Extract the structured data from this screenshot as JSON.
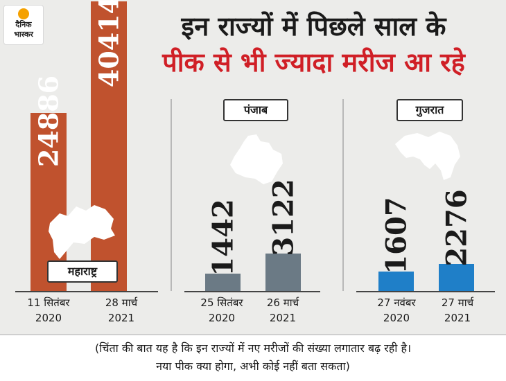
{
  "logo": {
    "line1": "दैनिक",
    "line2": "भास्कर"
  },
  "headline": {
    "line1": "इन राज्यों में पिछले साल के",
    "line2": "पीक से भी ज्यादा मरीज आ रहे"
  },
  "colors": {
    "maharashtra": "#c0522e",
    "punjab": "#6b7a85",
    "gujarat": "#1f7fc8",
    "headline_red": "#d01f26"
  },
  "chart_data": [
    {
      "type": "bar",
      "state": "महाराष्ट्र",
      "categories": [
        "11 सितंबर 2020",
        "28 मार्च 2021"
      ],
      "x_line1": [
        "11 सितंबर",
        "28 मार्च"
      ],
      "x_line2": [
        "2020",
        "2021"
      ],
      "values": [
        24886,
        40414
      ],
      "value_labels": [
        "24886",
        "40414"
      ]
    },
    {
      "type": "bar",
      "state": "पंजाब",
      "categories": [
        "25 सितंबर 2020",
        "26 मार्च 2021"
      ],
      "x_line1": [
        "25 सितंबर",
        "26 मार्च"
      ],
      "x_line2": [
        "2020",
        "2021"
      ],
      "values": [
        1442,
        3122
      ],
      "value_labels": [
        "1442",
        "3122"
      ]
    },
    {
      "type": "bar",
      "state": "गुजरात",
      "categories": [
        "27 नवंबर 2020",
        "27 मार्च 2021"
      ],
      "x_line1": [
        "27 नवंबर",
        "27 मार्च"
      ],
      "x_line2": [
        "2020",
        "2021"
      ],
      "values": [
        1607,
        2276
      ],
      "value_labels": [
        "1607",
        "2276"
      ]
    }
  ],
  "footer": {
    "line1": "(चिंता की बात यह है कि इन राज्यों में नए मरीजों की संख्या लगातार बढ़ रही है।",
    "line2": "नया पीक क्या होगा, अभी कोई नहीं बता सकता)"
  }
}
